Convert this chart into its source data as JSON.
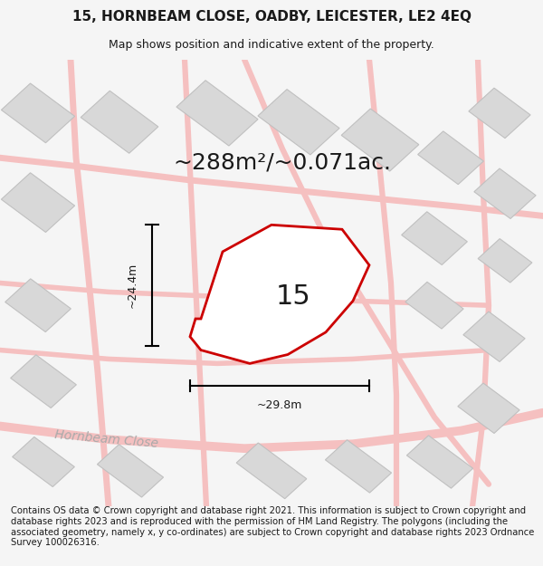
{
  "title_line1": "15, HORNBEAM CLOSE, OADBY, LEICESTER, LE2 4EQ",
  "title_line2": "Map shows position and indicative extent of the property.",
  "area_label": "~288m²/~0.071ac.",
  "plot_number": "15",
  "width_label": "~29.8m",
  "height_label": "~24.4m",
  "footer_text": "Contains OS data © Crown copyright and database right 2021. This information is subject to Crown copyright and database rights 2023 and is reproduced with the permission of HM Land Registry. The polygons (including the associated geometry, namely x, y co-ordinates) are subject to Crown copyright and database rights 2023 Ordnance Survey 100026316.",
  "bg_color": "#f5f5f5",
  "map_bg": "#ffffff",
  "road_color": "#f5c0c0",
  "building_color": "#d8d8d8",
  "building_outline": "#c0c0c0",
  "highlight_color": "#cc0000",
  "text_color": "#1a1a1a",
  "road_label_color": "#aaaaaa",
  "title_fontsize": 11,
  "subtitle_fontsize": 9,
  "area_fontsize": 18,
  "plot_num_fontsize": 22,
  "dim_fontsize": 9,
  "footer_fontsize": 7.2
}
